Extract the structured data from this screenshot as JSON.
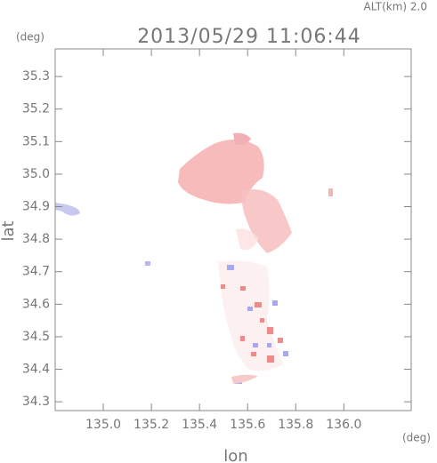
{
  "chart_data": {
    "type": "map",
    "title": "2013/05/29 11:06:44",
    "subtitle": "ALT(km) 2.0",
    "x_label": "lon",
    "y_label": "lat",
    "x_unit": "(deg)",
    "y_unit": "(deg)",
    "xlim": [
      134.8,
      136.28
    ],
    "ylim": [
      34.273,
      35.385
    ],
    "xticks": [
      {
        "value": 135,
        "label": "135.0"
      },
      135.2,
      135.4,
      135.6,
      135.8,
      {
        "value": 136,
        "label": "136.0"
      }
    ],
    "yticks": [
      34.3,
      34.4,
      34.5,
      34.6,
      34.7,
      34.8,
      34.9,
      {
        "value": 35,
        "label": "35.0"
      },
      35.1,
      35.2,
      35.3
    ]
  }
}
